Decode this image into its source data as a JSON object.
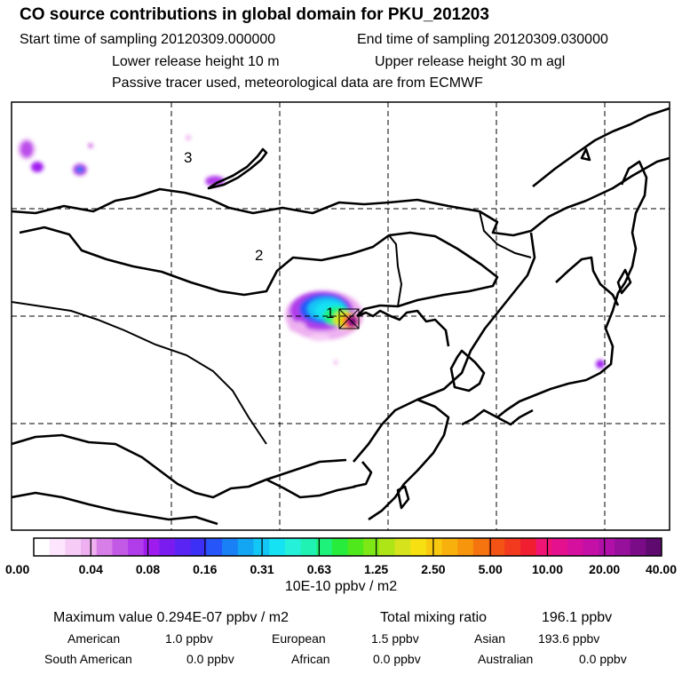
{
  "header": {
    "title": "CO  source contributions in global domain for PKU_201203",
    "start_time": "Start time of sampling 20120309.000000",
    "end_time": "End time of sampling 20120309.030000",
    "lower_height": "Lower release height   10 m",
    "upper_height": "Upper release height   30 m    agl",
    "tracer_note": "Passive tracer used, meteorological data are from ECMWF"
  },
  "map": {
    "region_labels": [
      "1",
      "2",
      "3"
    ],
    "frame_color": "#000000",
    "grid_style": "dashed"
  },
  "colorbar": {
    "ticks": [
      "0.00",
      "0.04",
      "0.08",
      "0.16",
      "0.31",
      "0.63",
      "1.25",
      "2.50",
      "5.00",
      "10.00",
      "20.00",
      "40.00"
    ],
    "unit": "10E-10 ppbv / m2",
    "colors": [
      "#ffffff",
      "#fde6fd",
      "#f6ccf6",
      "#eeb0f0",
      "#d77ee7",
      "#c35ae6",
      "#b13cea",
      "#9f1cef",
      "#7a1cf0",
      "#5a24f4",
      "#3c30f7",
      "#2656f9",
      "#1a80f5",
      "#13a6f3",
      "#12c6f5",
      "#15e2f2",
      "#25f0da",
      "#20f2b4",
      "#1ef27a",
      "#27ec3c",
      "#4fe81a",
      "#7ee716",
      "#aee516",
      "#d6e31c",
      "#f6e012",
      "#f8c90e",
      "#f8b00c",
      "#f7960d",
      "#f5740f",
      "#f35314",
      "#f23a1e",
      "#f01e30",
      "#f01474",
      "#e5108d",
      "#d50f9e",
      "#c410a7",
      "#b110a8",
      "#96109b",
      "#7a0c88",
      "#5e0a6f"
    ]
  },
  "stats": {
    "max_value": "Maximum value  0.294E-07 ppbv / m2",
    "total": "Total mixing ratio",
    "total_value": "196.1 ppbv",
    "regions": [
      {
        "name": "American",
        "value": "1.0 ppbv"
      },
      {
        "name": "European",
        "value": "1.5 ppbv"
      },
      {
        "name": "Asian",
        "value": "193.6 ppbv"
      },
      {
        "name": "South American",
        "value": "0.0 ppbv"
      },
      {
        "name": "African",
        "value": "0.0 ppbv"
      },
      {
        "name": "Australian",
        "value": "0.0 ppbv"
      }
    ]
  }
}
